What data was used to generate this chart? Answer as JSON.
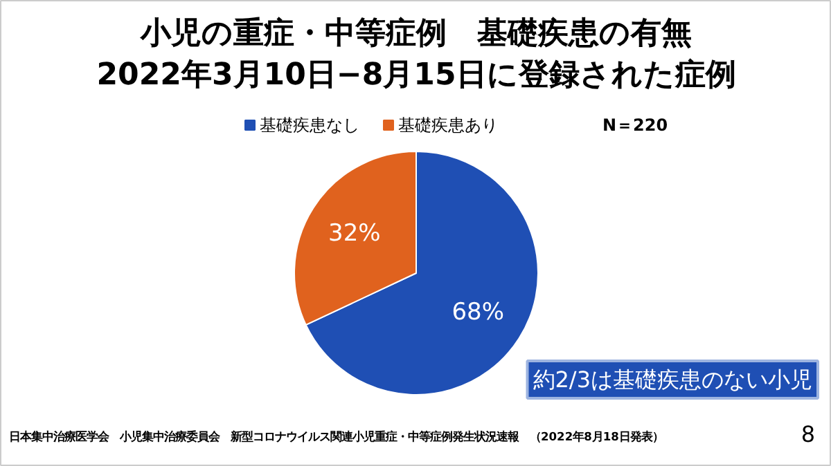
{
  "chart_data": {
    "type": "pie",
    "title": "小児の重症・中等症例　基礎疾患の有無",
    "subtitle": "2022年3月10日−8月15日に登録された症例",
    "categories": [
      "基礎疾患なし",
      "基礎疾患あり"
    ],
    "values": [
      68,
      32
    ],
    "colors": [
      "#1f4fb4",
      "#e0621e"
    ],
    "value_labels": [
      "68%",
      "32%"
    ],
    "legend": "top",
    "annotations": [
      "N＝220",
      "約2/3は基礎疾患のない小児",
      "日本集中治療医学会　小児集中治療委員会　新型コロナウイルス関連小児重症・中等症例発生状況速報　（2022年8月18日発表）",
      "8"
    ]
  }
}
